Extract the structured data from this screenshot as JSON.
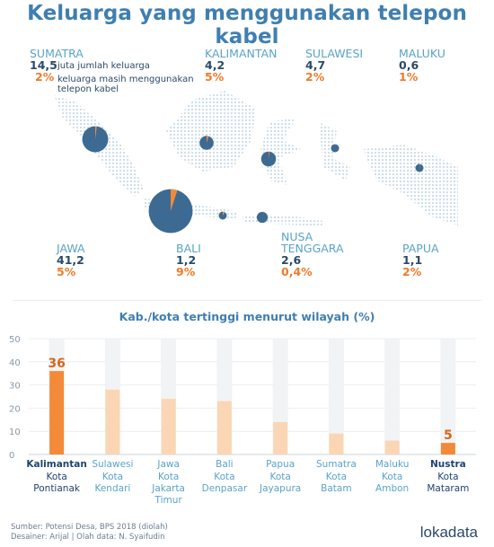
{
  "title": "Keluarga yang menggunakan telepon kabel",
  "legend": {
    "families_text": "juta jumlah keluarga",
    "share_text_line1": "keluarga masih menggunakan",
    "share_text_line2": "telepon kabel"
  },
  "regions": [
    {
      "id": "sumatra",
      "name": "SUMATRA",
      "families_millions": "14,5",
      "share_percent": "2%",
      "share_value": 2,
      "families_value": 14.5
    },
    {
      "id": "kalimantan",
      "name": "KALIMANTAN",
      "families_millions": "4,2",
      "share_percent": "5%",
      "share_value": 5,
      "families_value": 4.2
    },
    {
      "id": "sulawesi",
      "name": "SULAWESI",
      "families_millions": "4,7",
      "share_percent": "2%",
      "share_value": 2,
      "families_value": 4.7
    },
    {
      "id": "maluku",
      "name": "MALUKU",
      "families_millions": "0,6",
      "share_percent": "1%",
      "share_value": 1,
      "families_value": 0.6
    },
    {
      "id": "jawa",
      "name": "JAWA",
      "families_millions": "41,2",
      "share_percent": "5%",
      "share_value": 5,
      "families_value": 41.2
    },
    {
      "id": "bali",
      "name": "BALI",
      "families_millions": "1,2",
      "share_percent": "9%",
      "share_value": 9,
      "families_value": 1.2
    },
    {
      "id": "nusa_tenggara",
      "name_line1": "NUSA",
      "name_line2": "TENGGARA",
      "families_millions": "2,6",
      "share_percent": "0,4%",
      "share_value": 0.4,
      "families_value": 2.6
    },
    {
      "id": "papua",
      "name": "PAPUA",
      "families_millions": "1,1",
      "share_percent": "2%",
      "share_value": 2,
      "families_value": 1.1
    }
  ],
  "chart_data": {
    "type": "bar",
    "title": "Kab./kota tertinggi menurut wilayah (%)",
    "ylim": [
      0,
      50
    ],
    "yticks": [
      "0",
      "10",
      "20",
      "30",
      "40",
      "50"
    ],
    "categories": [
      {
        "region": "Kalimantan",
        "lines": [
          "Kota",
          "Pontianak"
        ],
        "value": 36,
        "label": "36"
      },
      {
        "region": "Sulawesi",
        "lines": [
          "Kota",
          "Kendari"
        ],
        "value": 28
      },
      {
        "region": "Jawa",
        "lines": [
          "Kota",
          "Jakarta",
          "Timur"
        ],
        "value": 24
      },
      {
        "region": "Bali",
        "lines": [
          "Kota",
          "Denpasar"
        ],
        "value": 23
      },
      {
        "region": "Papua",
        "lines": [
          "Kota",
          "Jayapura"
        ],
        "value": 14
      },
      {
        "region": "Sumatra",
        "lines": [
          "Kota",
          "Batam"
        ],
        "value": 9
      },
      {
        "region": "Maluku",
        "lines": [
          "Kota",
          "Ambon"
        ],
        "value": 6
      },
      {
        "region": "Nustra",
        "lines": [
          "Kota",
          "Mataram"
        ],
        "value": 5,
        "label": "5"
      }
    ],
    "colors": {
      "highlight": "#f28a3a",
      "normal": "#fbd6b5",
      "track": "#f1f3f5",
      "label_dark": "#1f4470",
      "label_light": "#5aa3c9"
    }
  },
  "footer": {
    "line1": "Sumber: Potensi Desa, BPS 2018 (diolah)",
    "line2": "Desainer: Arijal | Olah data: N. Syaifudin"
  },
  "brand": "lokadata"
}
